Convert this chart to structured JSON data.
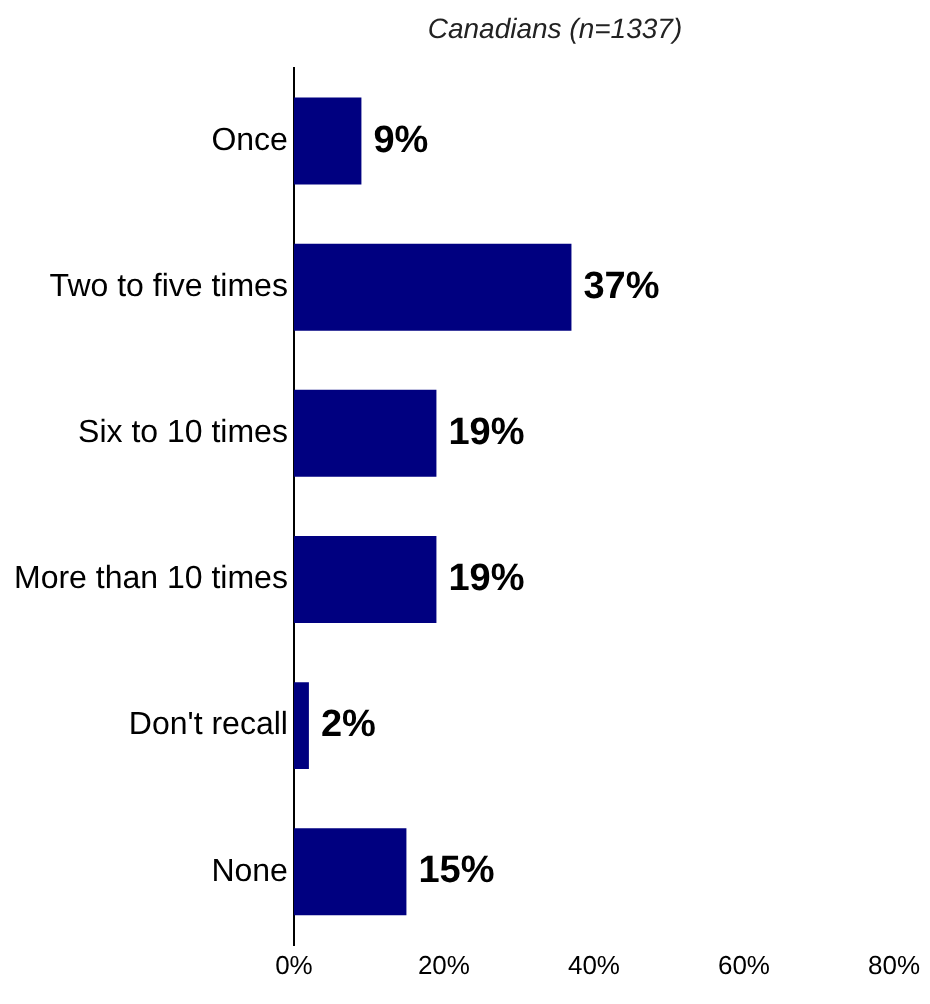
{
  "chart_data": {
    "type": "bar",
    "orientation": "horizontal",
    "title": "Canadians (n=1337)",
    "categories": [
      "Once",
      "Two to five times",
      "Six to 10 times",
      "More than 10 times",
      "Don't recall",
      "None"
    ],
    "values": [
      9,
      37,
      19,
      19,
      2,
      15
    ],
    "value_labels": [
      "9%",
      "37%",
      "19%",
      "19%",
      "2%",
      "15%"
    ],
    "color": "#000080",
    "xlim": [
      0,
      80
    ],
    "xticks": [
      {
        "value": 0,
        "label": "0%"
      },
      {
        "value": 20,
        "label": "20%"
      },
      {
        "value": 40,
        "label": "40%"
      },
      {
        "value": 60,
        "label": "60%"
      },
      {
        "value": 80,
        "label": "80%"
      }
    ],
    "grid": false,
    "legend": false
  }
}
